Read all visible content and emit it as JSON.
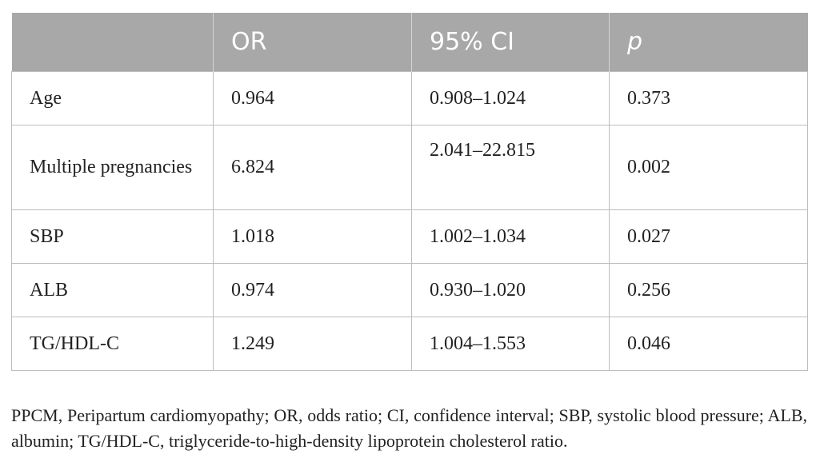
{
  "table": {
    "headers": [
      "",
      "OR",
      "95% CI",
      "p"
    ],
    "rows": [
      {
        "variable": "Age",
        "or": "0.964",
        "ci": "0.908–1.024",
        "p": "0.373"
      },
      {
        "variable": "Multiple pregnancies",
        "or": "6.824",
        "ci": "2.041–22.815",
        "p": "0.002"
      },
      {
        "variable": "SBP",
        "or": "1.018",
        "ci": "1.002–1.034",
        "p": "0.027"
      },
      {
        "variable": "ALB",
        "or": "0.974",
        "ci": "0.930–1.020",
        "p": "0.256"
      },
      {
        "variable": "TG/HDL-C",
        "or": "1.249",
        "ci": "1.004–1.553",
        "p": "0.046"
      }
    ]
  },
  "footnote": "PPCM, Peripartum cardiomyopathy; OR, odds ratio; CI, confidence interval; SBP, systolic blood pressure; ALB, albumin; TG/HDL-C, triglyceride-to-high-density lipoprotein cholesterol ratio.",
  "colors": {
    "header_bg": "#a8a8a8",
    "header_text": "#ffffff",
    "grid": "#bdbdbd",
    "body_text": "#222222"
  }
}
